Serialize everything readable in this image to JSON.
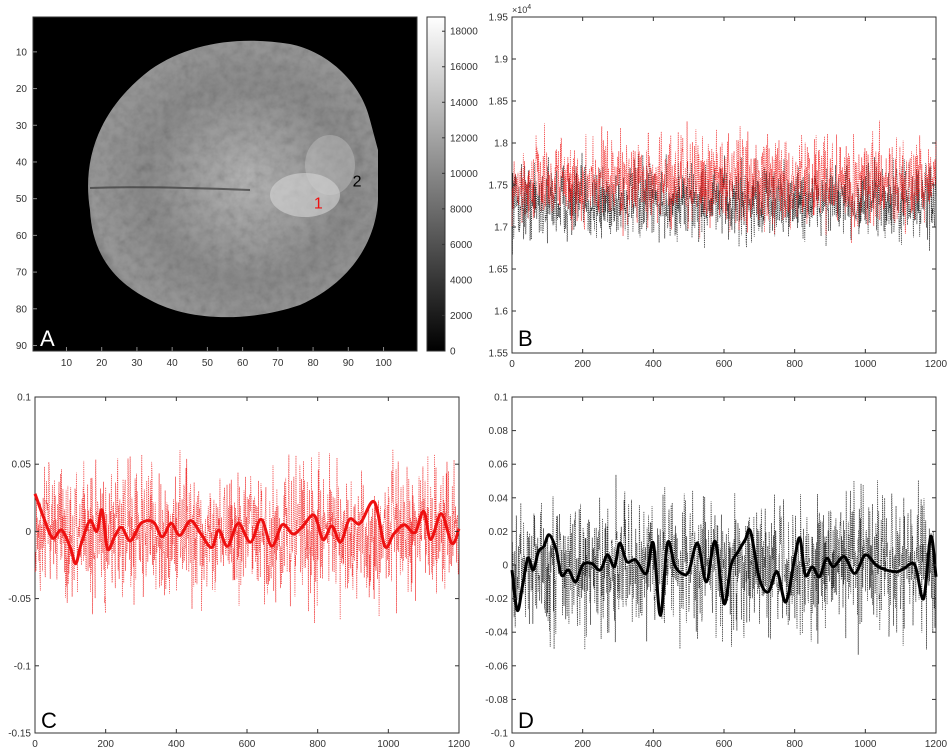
{
  "panels": {
    "A": {
      "letter": "A",
      "letter_color": "#ffffff"
    },
    "B": {
      "letter": "B",
      "letter_color": "#000000"
    },
    "C": {
      "letter": "C",
      "letter_color": "#000000"
    },
    "D": {
      "letter": "D",
      "letter_color": "#000000"
    }
  },
  "colors": {
    "red": "#ee1111",
    "black": "#000000",
    "axis": "#333333"
  },
  "chart_data": [
    {
      "panel": "A",
      "type": "heatmap",
      "title": "",
      "xlabel": "",
      "ylabel": "",
      "x_ticks": [
        10,
        20,
        30,
        40,
        50,
        60,
        70,
        80,
        90,
        100
      ],
      "y_ticks": [
        10,
        20,
        30,
        40,
        50,
        60,
        70,
        80,
        90
      ],
      "xlim": [
        0.5,
        109.5
      ],
      "ylim": [
        0.5,
        91.5
      ],
      "y_reversed": true,
      "colormap": "gray",
      "colorbar": {
        "ticks": [
          0,
          2000,
          4000,
          6000,
          8000,
          10000,
          12000,
          14000,
          16000,
          18000
        ],
        "range": [
          0,
          18800
        ]
      },
      "annotations": [
        {
          "text": "1",
          "x": 81.5,
          "y": 51,
          "color": "#ee1111"
        },
        {
          "text": "2",
          "x": 92.5,
          "y": 45,
          "color": "#000000"
        }
      ]
    },
    {
      "panel": "B",
      "type": "line",
      "title": "",
      "xlabel": "",
      "ylabel": "",
      "xlim": [
        0,
        1200
      ],
      "ylim": [
        15500,
        19500
      ],
      "x_ticks": [
        0,
        200,
        400,
        600,
        800,
        1000,
        1200
      ],
      "y_ticks": [
        15500,
        16000,
        16500,
        17000,
        17500,
        18000,
        18500,
        19000,
        19500
      ],
      "y_tick_labels": [
        "1.55",
        "1.6",
        "1.65",
        "1.7",
        "1.75",
        "1.8",
        "1.85",
        "1.9",
        "1.95"
      ],
      "y_multiplier": "×10",
      "y_multiplier_exp": "4",
      "series": [
        {
          "color": "#000000",
          "style": "dotted",
          "n_points": 1200,
          "mean": 17300,
          "spread": 280
        },
        {
          "color": "#ee1111",
          "style": "dotted",
          "n_points": 1200,
          "mean": 17550,
          "spread": 330
        }
      ]
    },
    {
      "panel": "C",
      "type": "line",
      "title": "",
      "xlabel": "",
      "ylabel": "",
      "xlim": [
        0,
        1200
      ],
      "ylim": [
        -0.15,
        0.1
      ],
      "x_ticks": [
        0,
        200,
        400,
        600,
        800,
        1000,
        1200
      ],
      "y_ticks": [
        -0.15,
        -0.1,
        -0.05,
        0,
        0.05,
        0.1
      ],
      "y_tick_labels": [
        "-0.15",
        "-0.1",
        "-0.05",
        "0",
        "0.05",
        "0.1"
      ],
      "series": [
        {
          "color": "#ee1111",
          "style": "dotted",
          "n_points": 1200,
          "spread": 0.03
        },
        {
          "color": "#ee1111",
          "style": "solid",
          "x": [
            0,
            25,
            50,
            75,
            100,
            115,
            130,
            155,
            175,
            190,
            205,
            225,
            245,
            270,
            300,
            335,
            360,
            385,
            410,
            440,
            470,
            500,
            520,
            545,
            575,
            610,
            640,
            670,
            700,
            730,
            755,
            790,
            815,
            840,
            865,
            890,
            920,
            960,
            990,
            1015,
            1045,
            1075,
            1100,
            1120,
            1150,
            1180,
            1200
          ],
          "y": [
            0.028,
            0.01,
            -0.005,
            0.001,
            -0.012,
            -0.024,
            -0.01,
            0.008,
            0.0,
            0.016,
            -0.013,
            -0.004,
            0.003,
            -0.007,
            0.006,
            0.007,
            -0.004,
            0.006,
            -0.003,
            0.008,
            -0.002,
            -0.012,
            0.001,
            -0.011,
            0.006,
            -0.008,
            0.009,
            -0.011,
            0.005,
            -0.002,
            0.003,
            0.012,
            -0.006,
            0.004,
            -0.008,
            0.009,
            0.006,
            0.022,
            -0.011,
            -0.002,
            0.005,
            -0.001,
            0.015,
            -0.006,
            0.013,
            -0.009,
            0.002
          ]
        }
      ]
    },
    {
      "panel": "D",
      "type": "line",
      "title": "",
      "xlabel": "",
      "ylabel": "",
      "xlim": [
        0,
        1200
      ],
      "ylim": [
        -0.1,
        0.1
      ],
      "x_ticks": [
        0,
        200,
        400,
        600,
        800,
        1000,
        1200
      ],
      "y_ticks": [
        -0.1,
        -0.08,
        -0.06,
        -0.04,
        -0.02,
        0,
        0.02,
        0.04,
        0.06,
        0.08,
        0.1
      ],
      "y_tick_labels": [
        "-0.1",
        "-0.08",
        "-0.06",
        "-0.04",
        "-0.02",
        "0",
        "0.02",
        "0.04",
        "0.06",
        "0.08",
        "0.1"
      ],
      "series": [
        {
          "color": "#000000",
          "style": "dotted",
          "n_points": 1200,
          "spread": 0.025
        },
        {
          "color": "#000000",
          "style": "solid",
          "x": [
            0,
            15,
            30,
            45,
            60,
            75,
            90,
            105,
            125,
            140,
            160,
            180,
            200,
            225,
            250,
            270,
            290,
            305,
            325,
            350,
            380,
            400,
            420,
            440,
            460,
            480,
            500,
            525,
            550,
            575,
            600,
            620,
            640,
            660,
            675,
            700,
            725,
            750,
            775,
            800,
            815,
            830,
            850,
            870,
            890,
            910,
            940,
            970,
            1000,
            1030,
            1060,
            1090,
            1110,
            1140,
            1165,
            1185,
            1200
          ],
          "y": [
            -0.003,
            -0.027,
            -0.012,
            0.004,
            -0.003,
            0.008,
            0.011,
            0.018,
            0.009,
            -0.006,
            -0.003,
            -0.01,
            0.0,
            0.001,
            -0.003,
            0.006,
            -0.001,
            0.013,
            0.002,
            0.003,
            -0.005,
            0.013,
            -0.03,
            0.013,
            0.0,
            -0.005,
            -0.004,
            0.013,
            -0.01,
            0.014,
            -0.023,
            0.0,
            0.008,
            0.015,
            0.02,
            -0.008,
            -0.016,
            -0.004,
            -0.022,
            0.004,
            0.016,
            -0.006,
            -0.001,
            -0.007,
            0.004,
            -0.001,
            0.005,
            -0.005,
            0.006,
            0.0,
            -0.003,
            -0.004,
            -0.002,
            0.0,
            -0.02,
            0.017,
            -0.007
          ]
        }
      ]
    }
  ]
}
